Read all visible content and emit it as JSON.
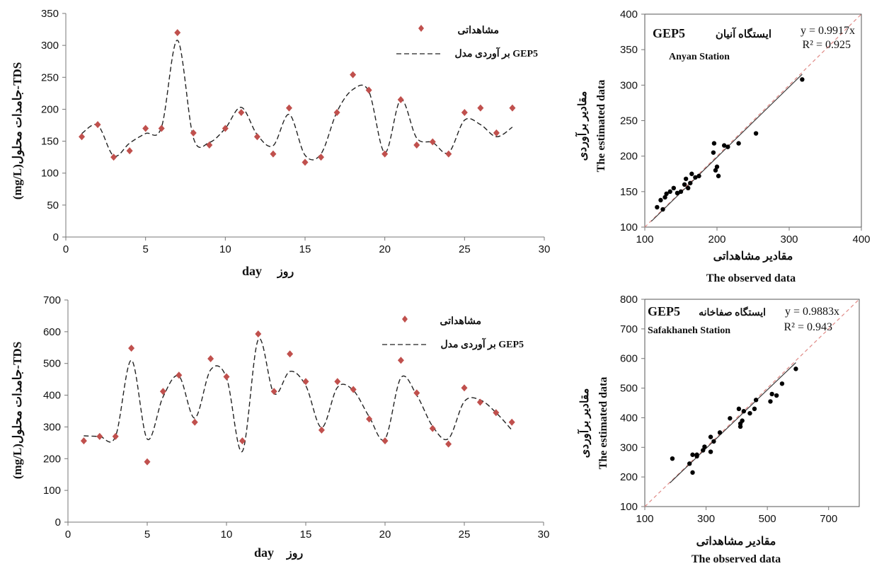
{
  "colors": {
    "observed": "#c0504d",
    "model": "#222222",
    "fit": "#333333",
    "identity": "#e08a86"
  },
  "chart_data": [
    {
      "type": "scatter",
      "xlabel_en": "day",
      "xlabel_fa": "روز",
      "ylabel": "(mg/L)جامدات محلول-TDS",
      "xlim": [
        0,
        30
      ],
      "ylim": [
        0,
        350
      ],
      "xticks": [
        0,
        5,
        10,
        15,
        20,
        25,
        30
      ],
      "yticks": [
        0,
        50,
        100,
        150,
        200,
        250,
        300,
        350
      ],
      "legend_observed": "مشاهداتی",
      "legend_model": "بر آوردی مدل GEP5",
      "observed_x": [
        1,
        2,
        3,
        4,
        5,
        6,
        7,
        8,
        9,
        10,
        11,
        12,
        13,
        14,
        15,
        16,
        17,
        18,
        19,
        20,
        21,
        22,
        23,
        24,
        25,
        26,
        27,
        28
      ],
      "observed_y": [
        157,
        176,
        125,
        135,
        170,
        170,
        320,
        163,
        144,
        170,
        195,
        157,
        130,
        202,
        117,
        125,
        195,
        254,
        230,
        130,
        215,
        144,
        149,
        130,
        195,
        202,
        163,
        202
      ],
      "model_y": [
        162,
        175,
        127,
        147,
        162,
        172,
        308,
        155,
        148,
        170,
        203,
        160,
        143,
        192,
        128,
        130,
        196,
        231,
        228,
        132,
        215,
        155,
        148,
        132,
        183,
        176,
        157,
        172
      ]
    },
    {
      "type": "scatter",
      "title_fa": "ایستگاه آنیان",
      "title_model": "GEP5",
      "subtitle": "Anyan Station",
      "equation": "y = 0.9917x",
      "r2": "R² = 0.925",
      "xlabel_fa": "مقادیر مشاهداتی",
      "xlabel_en": "The observed data",
      "ylabel_fa": "مقادیر برآوردی",
      "ylabel_en": "The estimated data",
      "xlim": [
        100,
        400
      ],
      "ylim": [
        100,
        400
      ],
      "xticks": [
        100,
        200,
        300,
        400
      ],
      "yticks": [
        100,
        150,
        200,
        250,
        300,
        350,
        400
      ],
      "x": [
        117,
        122,
        125,
        128,
        130,
        135,
        140,
        145,
        150,
        155,
        157,
        160,
        163,
        165,
        170,
        175,
        195,
        196,
        198,
        200,
        202,
        210,
        215,
        230,
        254,
        318
      ],
      "y": [
        128,
        138,
        125,
        142,
        147,
        150,
        155,
        148,
        150,
        160,
        168,
        155,
        162,
        175,
        170,
        172,
        205,
        218,
        180,
        185,
        172,
        215,
        213,
        218,
        232,
        308
      ],
      "slope": 0.9917
    },
    {
      "type": "scatter",
      "xlabel_en": "day",
      "xlabel_fa": "روز",
      "ylabel": "(mg/L)جامدات محلول-TDS",
      "xlim": [
        0,
        30
      ],
      "ylim": [
        0,
        700
      ],
      "xticks": [
        0,
        5,
        10,
        15,
        20,
        25,
        30
      ],
      "yticks": [
        0,
        100,
        200,
        300,
        400,
        500,
        600,
        700
      ],
      "legend_observed": "مشاهداتی",
      "legend_model": "بر آوردی مدل GEP5",
      "observed_x": [
        1,
        2,
        3,
        4,
        5,
        6,
        7,
        8,
        9,
        10,
        11,
        12,
        13,
        14,
        15,
        16,
        17,
        18,
        19,
        20,
        21,
        22,
        23,
        24,
        25,
        26,
        27,
        28
      ],
      "observed_y": [
        256,
        270,
        270,
        548,
        190,
        412,
        463,
        315,
        515,
        458,
        256,
        593,
        412,
        530,
        443,
        290,
        443,
        418,
        325,
        256,
        510,
        407,
        295,
        246,
        423,
        378,
        345,
        315
      ],
      "model_y": [
        272,
        270,
        270,
        510,
        262,
        395,
        460,
        328,
        480,
        455,
        223,
        575,
        405,
        475,
        430,
        298,
        425,
        415,
        332,
        262,
        455,
        400,
        302,
        263,
        380,
        385,
        345,
        290
      ]
    },
    {
      "type": "scatter",
      "title_fa": "ایستگاه صفاخانه",
      "title_model": "GEP5",
      "subtitle": "Safakhaneh Station",
      "equation": "y = 0.9883x",
      "r2": "R² = 0.943",
      "xlabel_fa": "مقادیر مشاهداتی",
      "xlabel_en": "The observed data",
      "ylabel_fa": "مقادیر برآوردی",
      "ylabel_en": "The estimated data",
      "xlim": [
        100,
        800
      ],
      "ylim": [
        100,
        800
      ],
      "xticks": [
        100,
        300,
        500,
        700
      ],
      "yticks": [
        100,
        200,
        300,
        400,
        500,
        600,
        700,
        800
      ],
      "x": [
        190,
        246,
        256,
        256,
        270,
        270,
        290,
        295,
        315,
        315,
        325,
        345,
        378,
        407,
        412,
        412,
        418,
        423,
        443,
        458,
        463,
        510,
        515,
        530,
        548,
        593
      ],
      "y": [
        262,
        245,
        215,
        275,
        270,
        275,
        290,
        302,
        285,
        335,
        320,
        350,
        398,
        430,
        380,
        370,
        390,
        422,
        415,
        430,
        460,
        455,
        480,
        475,
        515,
        565
      ],
      "slope": 0.9883
    }
  ]
}
